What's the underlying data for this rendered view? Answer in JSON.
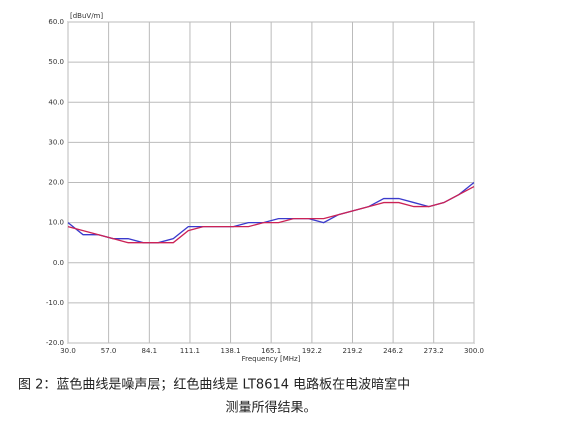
{
  "chart_data": {
    "type": "line",
    "y_label": "[dBuV/m]",
    "x_label": "Frequency [MHz]",
    "caption": [
      "图 2：蓝色曲线是噪声层；红色曲线是 LT8614 电路板在电波暗室中",
      "测量所得结果。"
    ],
    "x": [
      30,
      40,
      50,
      60,
      70,
      80,
      90,
      100,
      110,
      120,
      130,
      140,
      150,
      160,
      170,
      180,
      190,
      200,
      210,
      220,
      230,
      240,
      250,
      260,
      270,
      280,
      290,
      300
    ],
    "series": [
      {
        "name": "noise floor",
        "color": "#3a3acc",
        "values": [
          10,
          7,
          7,
          6,
          6,
          5,
          5,
          6,
          9,
          9,
          9,
          9,
          10,
          10,
          11,
          11,
          11,
          10,
          12,
          13,
          14,
          16,
          16,
          15,
          14,
          15,
          17,
          20
        ]
      },
      {
        "name": "LT8614",
        "color": "#cc2255",
        "values": [
          9,
          8,
          7,
          6,
          5,
          5,
          5,
          5,
          8,
          9,
          9,
          9,
          9,
          10,
          10,
          11,
          11,
          11,
          12,
          13,
          14,
          15,
          15,
          14,
          14,
          15,
          17,
          19
        ]
      }
    ],
    "xlim": [
      30,
      300
    ],
    "xticks": [
      {
        "value": 30,
        "label": "30.0"
      },
      {
        "value": 57,
        "label": "57.0"
      },
      84.1,
      111.1,
      138.1,
      165.1,
      192.2,
      219.2,
      246.2,
      273.2,
      {
        "value": 300,
        "label": "300.0"
      }
    ],
    "ylim": [
      -20,
      60
    ],
    "yticks": [
      {
        "value": -20,
        "label": "-20.0"
      },
      {
        "value": -10,
        "label": "-10.0"
      },
      {
        "value": 0,
        "label": "0.0"
      },
      {
        "value": 10,
        "label": "10.0"
      },
      {
        "value": 20,
        "label": "20.0"
      },
      {
        "value": 30,
        "label": "30.0"
      },
      {
        "value": 40,
        "label": "40.0"
      },
      {
        "value": 50,
        "label": "50.0"
      },
      {
        "value": 60,
        "label": "60.0"
      }
    ],
    "grid": true
  }
}
